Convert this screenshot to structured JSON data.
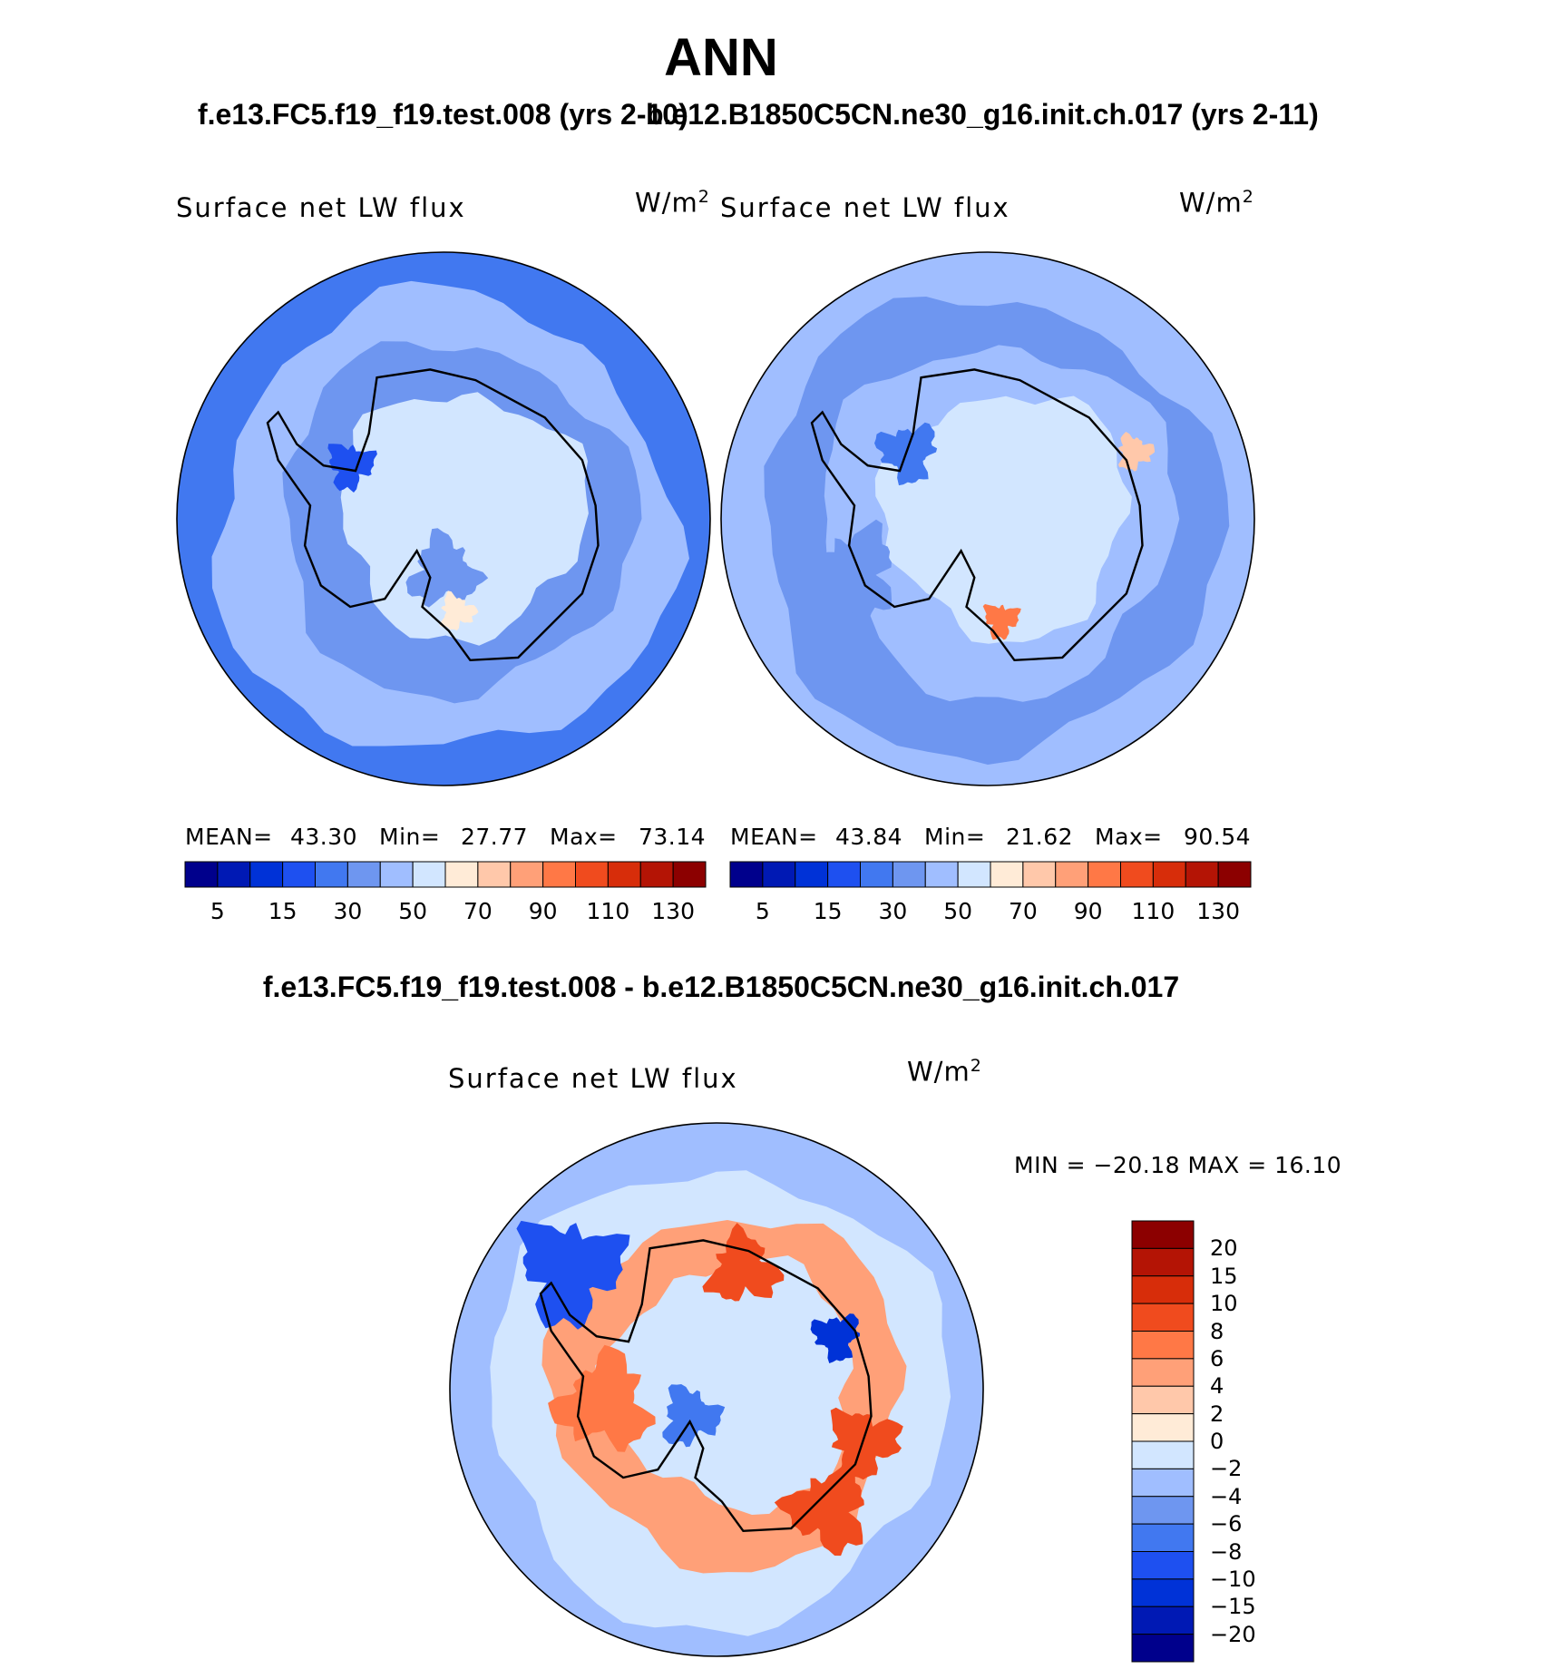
{
  "header": {
    "season": "ANN",
    "case1_title": "f.e13.FC5.f19_f19.test.008 (yrs 2-10)",
    "case2_title": "b.e12.B1850C5CN.ne30_g16.init.ch.017 (yrs 2-11)",
    "diff_title": "f.e13.FC5.f19_f19.test.008 - b.e12.B1850C5CN.ne30_g16.init.ch.017"
  },
  "panels": [
    {
      "variable": "Surface net LW flux",
      "units_base": "W/m",
      "units_exp": "2",
      "mean_label": "MEAN=",
      "mean_value": "43.30",
      "min_label": "Min=",
      "min_value": "27.77",
      "max_label": "Max=",
      "max_value": "73.14"
    },
    {
      "variable": "Surface net LW flux",
      "units_base": "W/m",
      "units_exp": "2",
      "mean_label": "MEAN=",
      "mean_value": "43.84",
      "min_label": "Min=",
      "min_value": "21.62",
      "max_label": "Max=",
      "max_value": "90.54"
    }
  ],
  "diff_panel": {
    "variable": "Surface net LW flux",
    "units_base": "W/m",
    "units_exp": "2",
    "minmax_text": "MIN = −20.18 MAX =   16.10"
  },
  "chart_data": [
    {
      "type": "heatmap",
      "projection": "south-polar-stereographic",
      "title": "f.e13.FC5.f19_f19.test.008 (yrs 2-10)",
      "variable": "Surface net LW flux",
      "units": "W/m2",
      "mean": 43.3,
      "min": 27.77,
      "max": 73.14,
      "colorbar_ticks": [
        "5",
        "15",
        "30",
        "50",
        "70",
        "90",
        "110",
        "130"
      ],
      "colorbar_colors": [
        "#00008c",
        "#0019b4",
        "#0032d7",
        "#1e50f0",
        "#4178f0",
        "#6e96f0",
        "#a0beff",
        "#d2e6ff",
        "#ffebd7",
        "#ffc8aa",
        "#ffa078",
        "#ff7846",
        "#f04b1e",
        "#d72d0a",
        "#b41405",
        "#8c0000"
      ]
    },
    {
      "type": "heatmap",
      "projection": "south-polar-stereographic",
      "title": "b.e12.B1850C5CN.ne30_g16.init.ch.017 (yrs 2-11)",
      "variable": "Surface net LW flux",
      "units": "W/m2",
      "mean": 43.84,
      "min": 21.62,
      "max": 90.54,
      "colorbar_ticks": [
        "5",
        "15",
        "30",
        "50",
        "70",
        "90",
        "110",
        "130"
      ],
      "colorbar_colors": [
        "#00008c",
        "#0019b4",
        "#0032d7",
        "#1e50f0",
        "#4178f0",
        "#6e96f0",
        "#a0beff",
        "#d2e6ff",
        "#ffebd7",
        "#ffc8aa",
        "#ffa078",
        "#ff7846",
        "#f04b1e",
        "#d72d0a",
        "#b41405",
        "#8c0000"
      ]
    },
    {
      "type": "heatmap",
      "projection": "south-polar-stereographic",
      "title": "f.e13.FC5.f19_f19.test.008 - b.e12.B1850C5CN.ne30_g16.init.ch.017",
      "variable": "Surface net LW flux",
      "units": "W/m2",
      "min": -20.18,
      "max": 16.1,
      "colorbar_ticks": [
        "20",
        "15",
        "10",
        "8",
        "6",
        "4",
        "2",
        "0",
        "−2",
        "−4",
        "−6",
        "−8",
        "−10",
        "−15",
        "−20"
      ],
      "colorbar_colors": [
        "#8c0000",
        "#b41405",
        "#d72d0a",
        "#f04b1e",
        "#ff7846",
        "#ffa078",
        "#ffc8aa",
        "#ffebd7",
        "#d2e6ff",
        "#a0beff",
        "#6e96f0",
        "#4178f0",
        "#1e50f0",
        "#0032d7",
        "#0019b4",
        "#00008c"
      ]
    }
  ]
}
